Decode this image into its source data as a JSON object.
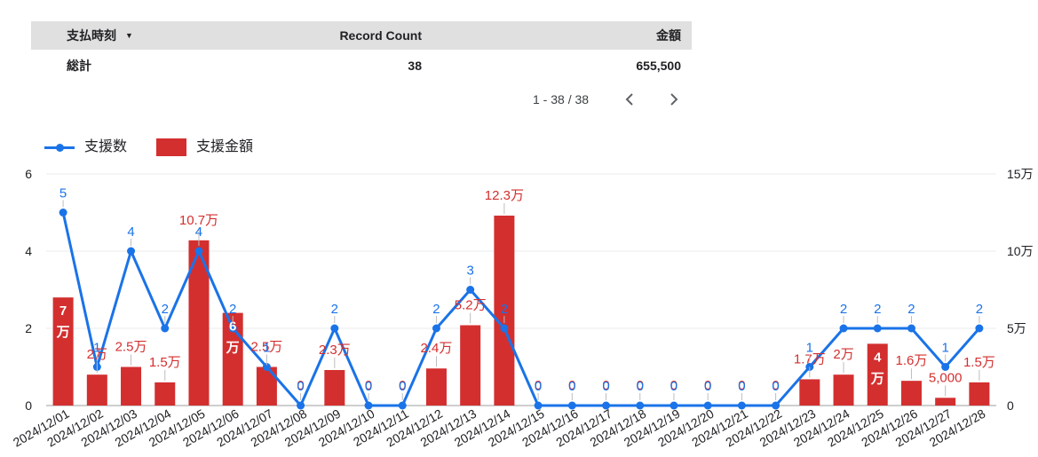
{
  "table": {
    "headers": [
      "支払時刻",
      "Record Count",
      "金額"
    ],
    "total_row": [
      "総計",
      "38",
      "655,500"
    ],
    "pagination": "1 - 38 / 38"
  },
  "legend": {
    "line_label": "支援数",
    "bar_label": "支援金額"
  },
  "colors": {
    "line": "#1a73e8",
    "bar": "#d32f2f"
  },
  "chart_data": {
    "type": "bar",
    "categories": [
      "2024/12/01",
      "2024/12/02",
      "2024/12/03",
      "2024/12/04",
      "2024/12/05",
      "2024/12/06",
      "2024/12/07",
      "2024/12/08",
      "2024/12/09",
      "2024/12/10",
      "2024/12/11",
      "2024/12/12",
      "2024/12/13",
      "2024/12/14",
      "2024/12/15",
      "2024/12/16",
      "2024/12/17",
      "2024/12/18",
      "2024/12/19",
      "2024/12/20",
      "2024/12/21",
      "2024/12/22",
      "2024/12/23",
      "2024/12/24",
      "2024/12/25",
      "2024/12/26",
      "2024/12/27",
      "2024/12/28"
    ],
    "series": [
      {
        "name": "支援数",
        "type": "line",
        "axis": "left",
        "values": [
          5,
          1,
          4,
          2,
          4,
          2,
          1,
          0,
          2,
          0,
          0,
          2,
          3,
          2,
          0,
          0,
          0,
          0,
          0,
          0,
          0,
          0,
          1,
          2,
          2,
          2,
          1,
          2
        ]
      },
      {
        "name": "支援金額",
        "type": "bar",
        "axis": "right",
        "values": [
          70000,
          20000,
          25000,
          15000,
          107000,
          60000,
          25000,
          0,
          23000,
          0,
          0,
          24000,
          52000,
          123000,
          0,
          0,
          0,
          0,
          0,
          0,
          0,
          0,
          17000,
          20000,
          40000,
          16000,
          5000,
          15000
        ]
      }
    ],
    "bar_labels": [
      "7万",
      "2万",
      "2.5万",
      "1.5万",
      "10.7万",
      "6万",
      "2.5万",
      "0",
      "2.3万",
      "0",
      "0",
      "2.4万",
      "5.2万",
      "12.3万",
      "0",
      "0",
      "0",
      "0",
      "0",
      "0",
      "0",
      "0",
      "1.7万",
      "2万",
      "4万",
      "1.6万",
      "5,000",
      "1.5万"
    ],
    "left_axis": {
      "ticks": [
        "0",
        "2",
        "4",
        "6"
      ],
      "range": [
        0,
        6
      ]
    },
    "right_axis": {
      "ticks": [
        "0",
        "5万",
        "10万",
        "15万"
      ],
      "range": [
        0,
        150000
      ]
    },
    "grid": true
  }
}
